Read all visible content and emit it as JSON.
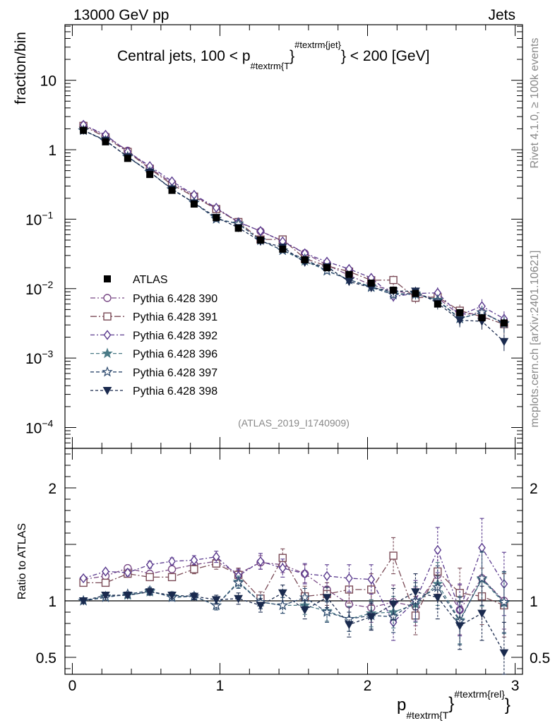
{
  "header": {
    "left_label": "13000 GeV pp",
    "right_label": "Jets"
  },
  "side_labels": {
    "rivet": "Rivet 4.1.0, ≥ 100k events",
    "mcplots": "mcplots.cern.ch [arXiv:2401.10621]"
  },
  "chart_data": {
    "type": "line",
    "title_main": "Central jets, 100 < p",
    "title_sub": "#textrm{T",
    "title_brace": "}",
    "title_sup": "#textrm{jet}",
    "title_tail": "} < 200 [GeV]",
    "analysis_id": "(ATLAS_2019_I1740909)",
    "ylabel_top": "fraction/bin",
    "ylabel_bottom": "Ratio to ATLAS",
    "xlabel_main": "p",
    "xlabel_sub": "#textrm{T",
    "xlabel_brace": "}",
    "xlabel_sup": "#textrm{rel}",
    "xlabel_tail": "}",
    "xlim": [
      -0.05,
      3.05
    ],
    "ylim_top_log10": [
      -4.3,
      1.8
    ],
    "ylim_ratio": [
      0.35,
      2.35
    ],
    "x_ticks": [
      {
        "v": 0,
        "label": "0"
      },
      {
        "v": 1,
        "label": "1"
      },
      {
        "v": 2,
        "label": "2"
      },
      {
        "v": 3,
        "label": "3"
      }
    ],
    "y_ticks_top": [
      {
        "exp": 1,
        "label": "10"
      },
      {
        "exp": 0,
        "label": "1"
      },
      {
        "exp": -1,
        "label": "10",
        "sup": "−1"
      },
      {
        "exp": -2,
        "label": "10",
        "sup": "−2"
      },
      {
        "exp": -3,
        "label": "10",
        "sup": "−3"
      },
      {
        "exp": -4,
        "label": "10",
        "sup": "−4"
      }
    ],
    "y_ticks_ratio": [
      {
        "v": 0.5,
        "label": "0.5"
      },
      {
        "v": 1,
        "label": "1"
      },
      {
        "v": 2,
        "label": "2"
      }
    ],
    "x": [
      0.075,
      0.225,
      0.375,
      0.525,
      0.675,
      0.825,
      0.975,
      1.125,
      1.275,
      1.425,
      1.575,
      1.725,
      1.875,
      2.025,
      2.175,
      2.325,
      2.475,
      2.625,
      2.775,
      2.925
    ],
    "data": {
      "name": "ATLAS",
      "values": [
        1.9,
        1.3,
        0.75,
        0.44,
        0.26,
        0.165,
        0.105,
        0.074,
        0.05,
        0.037,
        0.026,
        0.02,
        0.016,
        0.012,
        0.0095,
        0.0085,
        0.006,
        0.0045,
        0.0038,
        0.0032
      ]
    },
    "series": [
      {
        "name": "Pythia 6.428 390",
        "color": "#7a4a86",
        "marker": "circle-open",
        "dash": "7,3,2,3",
        "ratio": [
          1.19,
          1.22,
          1.29,
          1.24,
          1.28,
          1.32,
          1.35,
          1.24,
          1.34,
          1.32,
          1.24,
          1.1,
          0.97,
          0.94,
          0.99,
          0.95,
          1.23,
          0.92,
          1.2,
          1.0
        ],
        "err": [
          0.02,
          0.02,
          0.02,
          0.03,
          0.03,
          0.03,
          0.04,
          0.05,
          0.06,
          0.07,
          0.08,
          0.1,
          0.12,
          0.13,
          0.15,
          0.17,
          0.2,
          0.22,
          0.24,
          0.25
        ]
      },
      {
        "name": "Pythia 6.428 391",
        "color": "#7a4a56",
        "marker": "square-open",
        "dash": "9,3,2,3",
        "ratio": [
          1.16,
          1.16,
          1.24,
          1.21,
          1.21,
          1.28,
          1.33,
          1.23,
          1.02,
          1.38,
          1.04,
          1.06,
          1.1,
          1.1,
          1.4,
          0.87,
          1.26,
          1.07,
          1.04,
          0.96
        ],
        "err": [
          0.02,
          0.02,
          0.03,
          0.03,
          0.03,
          0.04,
          0.05,
          0.06,
          0.06,
          0.08,
          0.09,
          0.1,
          0.12,
          0.14,
          0.16,
          0.17,
          0.2,
          0.22,
          0.25,
          0.28
        ]
      },
      {
        "name": "Pythia 6.428 392",
        "color": "#5a3a8e",
        "marker": "diamond-open",
        "dash": "6,3,2,3",
        "ratio": [
          1.2,
          1.26,
          1.25,
          1.32,
          1.35,
          1.36,
          1.39,
          1.22,
          1.35,
          1.29,
          1.24,
          1.22,
          1.2,
          1.19,
          0.81,
          1.0,
          1.45,
          0.92,
          1.47,
          1.15
        ],
        "err": [
          0.02,
          0.02,
          0.03,
          0.03,
          0.03,
          0.04,
          0.05,
          0.06,
          0.07,
          0.08,
          0.09,
          0.1,
          0.12,
          0.13,
          0.16,
          0.18,
          0.2,
          0.23,
          0.26,
          0.28
        ]
      },
      {
        "name": "Pythia 6.428 396",
        "color": "#4a7a86",
        "marker": "star-filled",
        "dash": "5,3",
        "ratio": [
          1.0,
          1.04,
          1.05,
          1.08,
          1.04,
          1.04,
          0.96,
          1.17,
          0.99,
          0.96,
          0.96,
          0.91,
          0.84,
          0.89,
          0.9,
          0.97,
          1.15,
          0.83,
          1.19,
          0.98
        ],
        "err": [
          0.02,
          0.02,
          0.02,
          0.03,
          0.03,
          0.03,
          0.04,
          0.05,
          0.06,
          0.07,
          0.08,
          0.09,
          0.11,
          0.12,
          0.14,
          0.16,
          0.19,
          0.21,
          0.24,
          0.27
        ]
      },
      {
        "name": "Pythia 6.428 397",
        "color": "#2e4a6e",
        "marker": "star-open",
        "dash": "5,3",
        "ratio": [
          1.0,
          1.03,
          1.06,
          1.09,
          1.03,
          1.04,
          0.96,
          1.16,
          0.99,
          0.96,
          1.03,
          0.9,
          0.84,
          0.87,
          0.86,
          1.0,
          1.12,
          0.82,
          1.2,
          0.99
        ],
        "err": [
          0.02,
          0.02,
          0.02,
          0.03,
          0.03,
          0.03,
          0.04,
          0.05,
          0.06,
          0.07,
          0.08,
          0.09,
          0.11,
          0.12,
          0.14,
          0.16,
          0.19,
          0.21,
          0.24,
          0.27
        ]
      },
      {
        "name": "Pythia 6.428 398",
        "color": "#1a2a4e",
        "marker": "triangle-down",
        "dash": "4,3",
        "ratio": [
          1.0,
          1.05,
          1.05,
          1.08,
          1.05,
          1.04,
          1.01,
          1.02,
          0.96,
          1.07,
          0.92,
          1.03,
          0.79,
          0.86,
          0.97,
          1.08,
          1.03,
          0.78,
          0.89,
          0.54
        ],
        "err": [
          0.02,
          0.02,
          0.02,
          0.03,
          0.03,
          0.03,
          0.04,
          0.05,
          0.06,
          0.07,
          0.08,
          0.09,
          0.11,
          0.12,
          0.14,
          0.16,
          0.19,
          0.21,
          0.24,
          0.27
        ]
      }
    ]
  }
}
